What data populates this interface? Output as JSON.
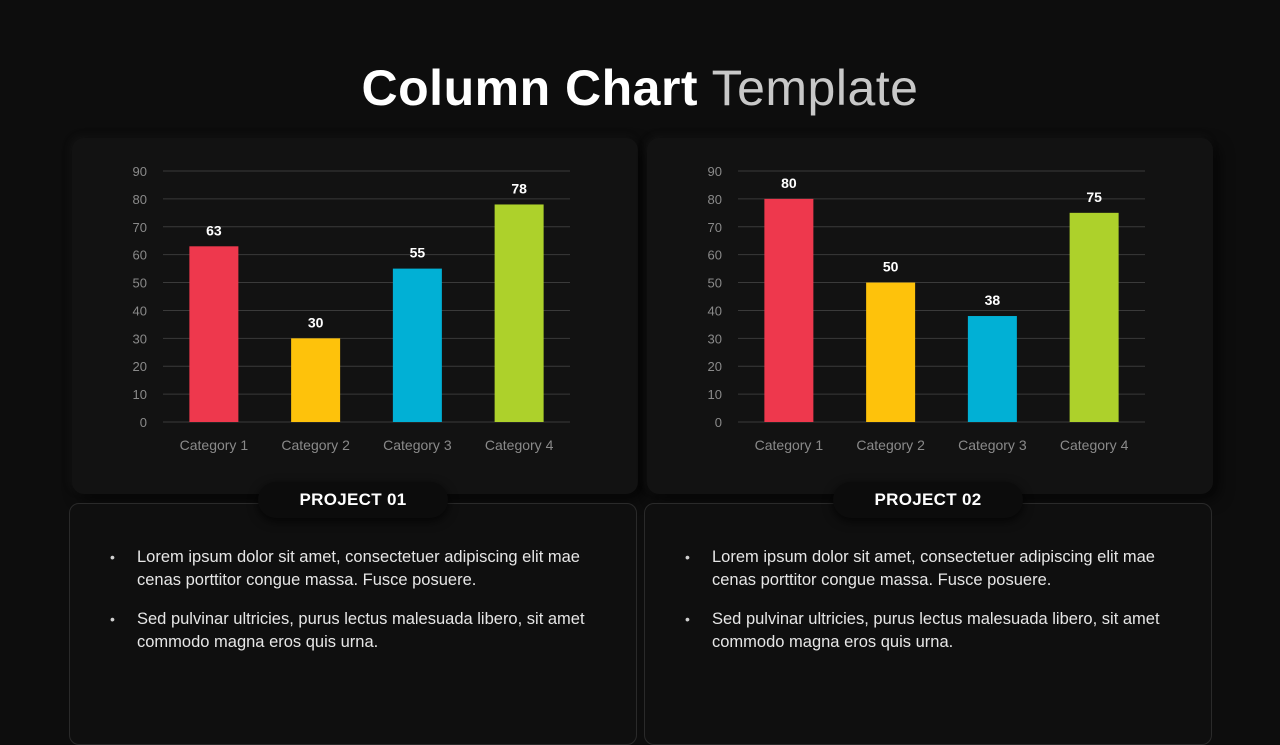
{
  "title": {
    "bold": "Column Chart",
    "light": "Template"
  },
  "colors": {
    "red": "#ee384d",
    "yellow": "#fec20b",
    "blue": "#01b0d5",
    "green": "#add12b",
    "background": "#0d0d0d",
    "grid": "#3a3a3a",
    "axis_text": "#8a8a8a"
  },
  "projects": [
    {
      "label": "PROJECT 01",
      "bullets": [
        "Lorem ipsum dolor sit amet, consectetuer adipiscing elit mae cenas porttitor congue massa. Fusce posuere.",
        "Sed pulvinar ultricies, purus lectus malesuada libero, sit amet commodo magna eros quis urna."
      ]
    },
    {
      "label": "PROJECT 02",
      "bullets": [
        "Lorem ipsum dolor sit amet, consectetuer adipiscing elit mae cenas porttitor congue massa. Fusce posuere.",
        "Sed pulvinar ultricies, purus lectus malesuada libero, sit amet commodo magna eros quis urna."
      ]
    }
  ],
  "chart_data": [
    {
      "type": "bar",
      "categories": [
        "Category 1",
        "Category 2",
        "Category 3",
        "Category 4"
      ],
      "values": [
        63,
        30,
        55,
        78
      ],
      "bar_colors": [
        "#ee384d",
        "#fec20b",
        "#01b0d5",
        "#add12b"
      ],
      "ylim": [
        0,
        90
      ],
      "yticks": [
        0,
        10,
        20,
        30,
        40,
        50,
        60,
        70,
        80,
        90
      ],
      "grid": true,
      "data_labels": true
    },
    {
      "type": "bar",
      "categories": [
        "Category 1",
        "Category 2",
        "Category 3",
        "Category 4"
      ],
      "values": [
        80,
        50,
        38,
        75
      ],
      "bar_colors": [
        "#ee384d",
        "#fec20b",
        "#01b0d5",
        "#add12b"
      ],
      "ylim": [
        0,
        90
      ],
      "yticks": [
        0,
        10,
        20,
        30,
        40,
        50,
        60,
        70,
        80,
        90
      ],
      "grid": true,
      "data_labels": true
    }
  ]
}
